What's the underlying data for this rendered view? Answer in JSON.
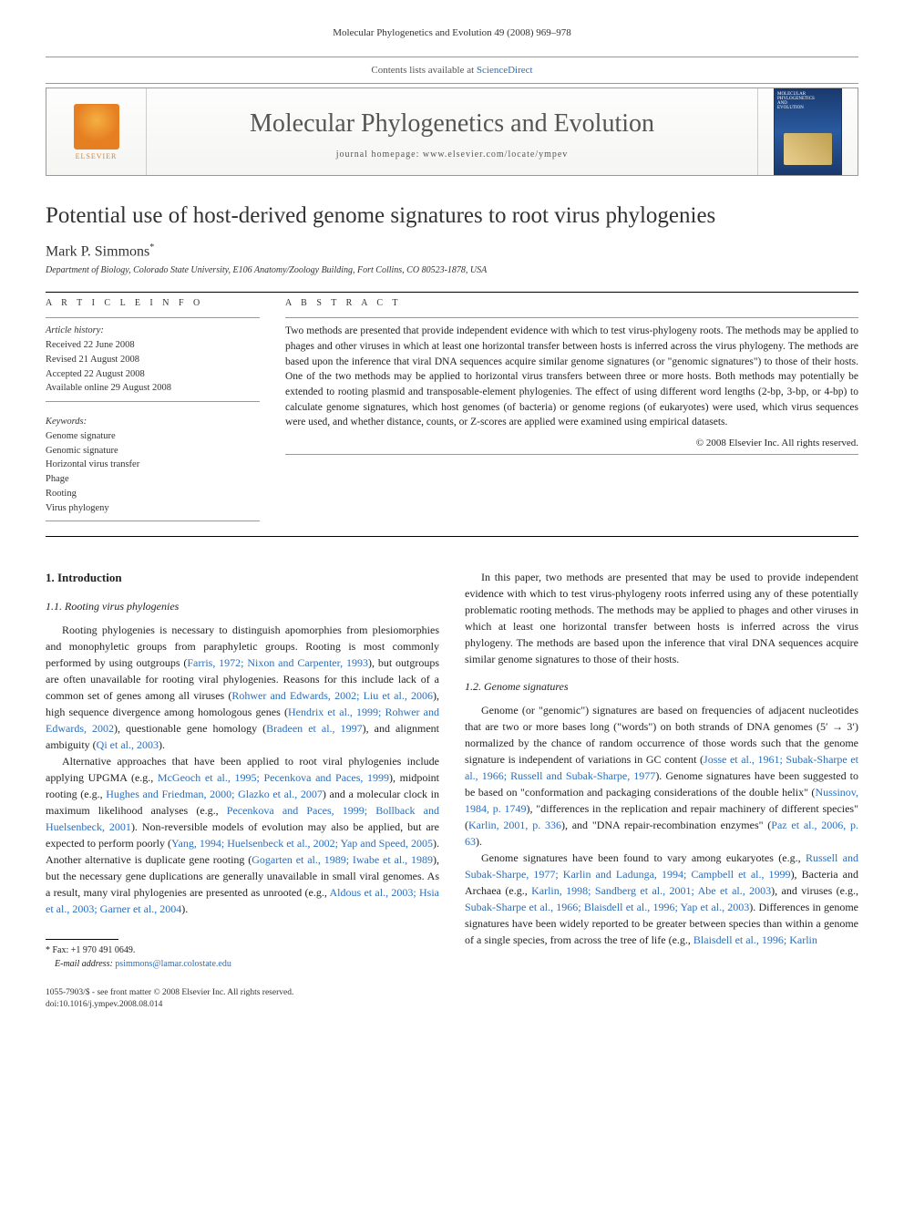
{
  "running_head": "Molecular Phylogenetics and Evolution 49 (2008) 969–978",
  "topbar": {
    "prefix": "Contents lists available at ",
    "link": "ScienceDirect"
  },
  "header": {
    "journal_name": "Molecular Phylogenetics and Evolution",
    "homepage_prefix": "journal homepage: ",
    "homepage_url": "www.elsevier.com/locate/ympev",
    "elsevier_label": "ELSEVIER",
    "cover_line1": "MOLECULAR",
    "cover_line2": "PHYLOGENETICS",
    "cover_line3": "AND",
    "cover_line4": "EVOLUTION"
  },
  "article": {
    "title": "Potential use of host-derived genome signatures to root virus phylogenies",
    "author": "Mark P. Simmons",
    "author_marker": "*",
    "affiliation": "Department of Biology, Colorado State University, E106 Anatomy/Zoology Building, Fort Collins, CO 80523-1878, USA"
  },
  "info": {
    "heading": "A R T I C L E   I N F O",
    "history_label": "Article history:",
    "received": "Received 22 June 2008",
    "revised": "Revised 21 August 2008",
    "accepted": "Accepted 22 August 2008",
    "online": "Available online 29 August 2008",
    "keywords_label": "Keywords:",
    "keywords": [
      "Genome signature",
      "Genomic signature",
      "Horizontal virus transfer",
      "Phage",
      "Rooting",
      "Virus phylogeny"
    ]
  },
  "abstract": {
    "heading": "A B S T R A C T",
    "text": "Two methods are presented that provide independent evidence with which to test virus-phylogeny roots. The methods may be applied to phages and other viruses in which at least one horizontal transfer between hosts is inferred across the virus phylogeny. The methods are based upon the inference that viral DNA sequences acquire similar genome signatures (or \"genomic signatures\") to those of their hosts. One of the two methods may be applied to horizontal virus transfers between three or more hosts. Both methods may potentially be extended to rooting plasmid and transposable-element phylogenies. The effect of using different word lengths (2-bp, 3-bp, or 4-bp) to calculate genome signatures, which host genomes (of bacteria) or genome regions (of eukaryotes) were used, which virus sequences were used, and whether distance, counts, or Z-scores are applied were examined using empirical datasets.",
    "copyright": "© 2008 Elsevier Inc. All rights reserved."
  },
  "body": {
    "h_intro": "1. Introduction",
    "h_11": "1.1. Rooting virus phylogenies",
    "p1a": "Rooting phylogenies is necessary to distinguish apomorphies from plesiomorphies and monophyletic groups from paraphyletic groups. Rooting is most commonly performed by using outgroups (",
    "c1": "Farris, 1972; Nixon and Carpenter, 1993",
    "p1b": "), but outgroups are often unavailable for rooting viral phylogenies. Reasons for this include lack of a common set of genes among all viruses (",
    "c2": "Rohwer and Edwards, 2002; Liu et al., 2006",
    "p1c": "), high sequence divergence among homologous genes (",
    "c3": "Hendrix et al., 1999; Rohwer and Edwards, 2002",
    "p1d": "), questionable gene homology (",
    "c4": "Bradeen et al., 1997",
    "p1e": "), and alignment ambiguity (",
    "c5": "Qi et al., 2003",
    "p1f": ").",
    "p2a": "Alternative approaches that have been applied to root viral phylogenies include applying UPGMA (e.g., ",
    "c6": "McGeoch et al., 1995; Pecenkova and Paces, 1999",
    "p2b": "), midpoint rooting (e.g., ",
    "c7": "Hughes and Friedman, 2000; Glazko et al., 2007",
    "p2c": ") and a molecular clock in maximum likelihood analyses (e.g., ",
    "c8": "Pecenkova and Paces, 1999; Bollback and Huelsenbeck, 2001",
    "p2d": "). Non-reversible models of evolution may also be applied, but are expected to perform poorly (",
    "c9": "Yang, 1994; Huelsenbeck et al., 2002; Yap and Speed, 2005",
    "p2e": "). Another alternative is duplicate gene rooting (",
    "c10": "Gogarten et al., 1989; Iwabe et al., 1989",
    "p2f": "), but the necessary gene duplications are generally unavailable in small viral genomes. As a result, many viral phylogenies are presented as unrooted (e.g., ",
    "c11": "Aldous et al., 2003; Hsia et al., 2003; Garner et al., 2004",
    "p2g": ").",
    "p3": "In this paper, two methods are presented that may be used to provide independent evidence with which to test virus-phylogeny roots inferred using any of these potentially problematic rooting methods. The methods may be applied to phages and other viruses in which at least one horizontal transfer between hosts is inferred across the virus phylogeny. The methods are based upon the inference that viral DNA sequences acquire similar genome signatures to those of their hosts.",
    "h_12": "1.2. Genome signatures",
    "p4a": "Genome (or \"genomic\") signatures are based on frequencies of adjacent nucleotides that are two or more bases long (\"words\") on both strands of DNA genomes (5′ → 3′) normalized by the chance of random occurrence of those words such that the genome signature is independent of variations in GC content (",
    "c12": "Josse et al., 1961; Subak-Sharpe et al., 1966; Russell and Subak-Sharpe, 1977",
    "p4b": "). Genome signatures have been suggested to be based on \"conformation and packaging considerations of the double helix\" (",
    "c13": "Nussinov, 1984, p. 1749",
    "p4c": "), \"differences in the replication and repair machinery of different species\" (",
    "c14": "Karlin, 2001, p. 336",
    "p4d": "), and \"DNA repair-recombination enzymes\" (",
    "c15": "Paz et al., 2006, p. 63",
    "p4e": ").",
    "p5a": "Genome signatures have been found to vary among eukaryotes (e.g., ",
    "c16": "Russell and Subak-Sharpe, 1977; Karlin and Ladunga, 1994; Campbell et al., 1999",
    "p5b": "), Bacteria and Archaea (e.g., ",
    "c17": "Karlin, 1998; Sandberg et al., 2001; Abe et al., 2003",
    "p5c": "), and viruses (e.g., ",
    "c18": "Subak-Sharpe et al., 1966; Blaisdell et al., 1996; Yap et al., 2003",
    "p5d": "). Differences in genome signatures have been widely reported to be greater between species than within a genome of a single species, from across the tree of life (e.g., ",
    "c19": "Blaisdell et al., 1996; Karlin"
  },
  "footnotes": {
    "fax": "* Fax: +1 970 491 0649.",
    "email_label": "E-mail address:",
    "email": "psimmons@lamar.colostate.edu"
  },
  "footer": {
    "line1": "1055-7903/$ - see front matter © 2008 Elsevier Inc. All rights reserved.",
    "line2": "doi:10.1016/j.ympev.2008.08.014"
  },
  "colors": {
    "link": "#2a6ebb",
    "text": "#222222",
    "border": "#999999",
    "elsevier": "#e67e22"
  },
  "typography": {
    "title_size": 25,
    "journal_size": 28,
    "body_size": 12,
    "abstract_size": 11.5,
    "info_size": 10.5
  }
}
